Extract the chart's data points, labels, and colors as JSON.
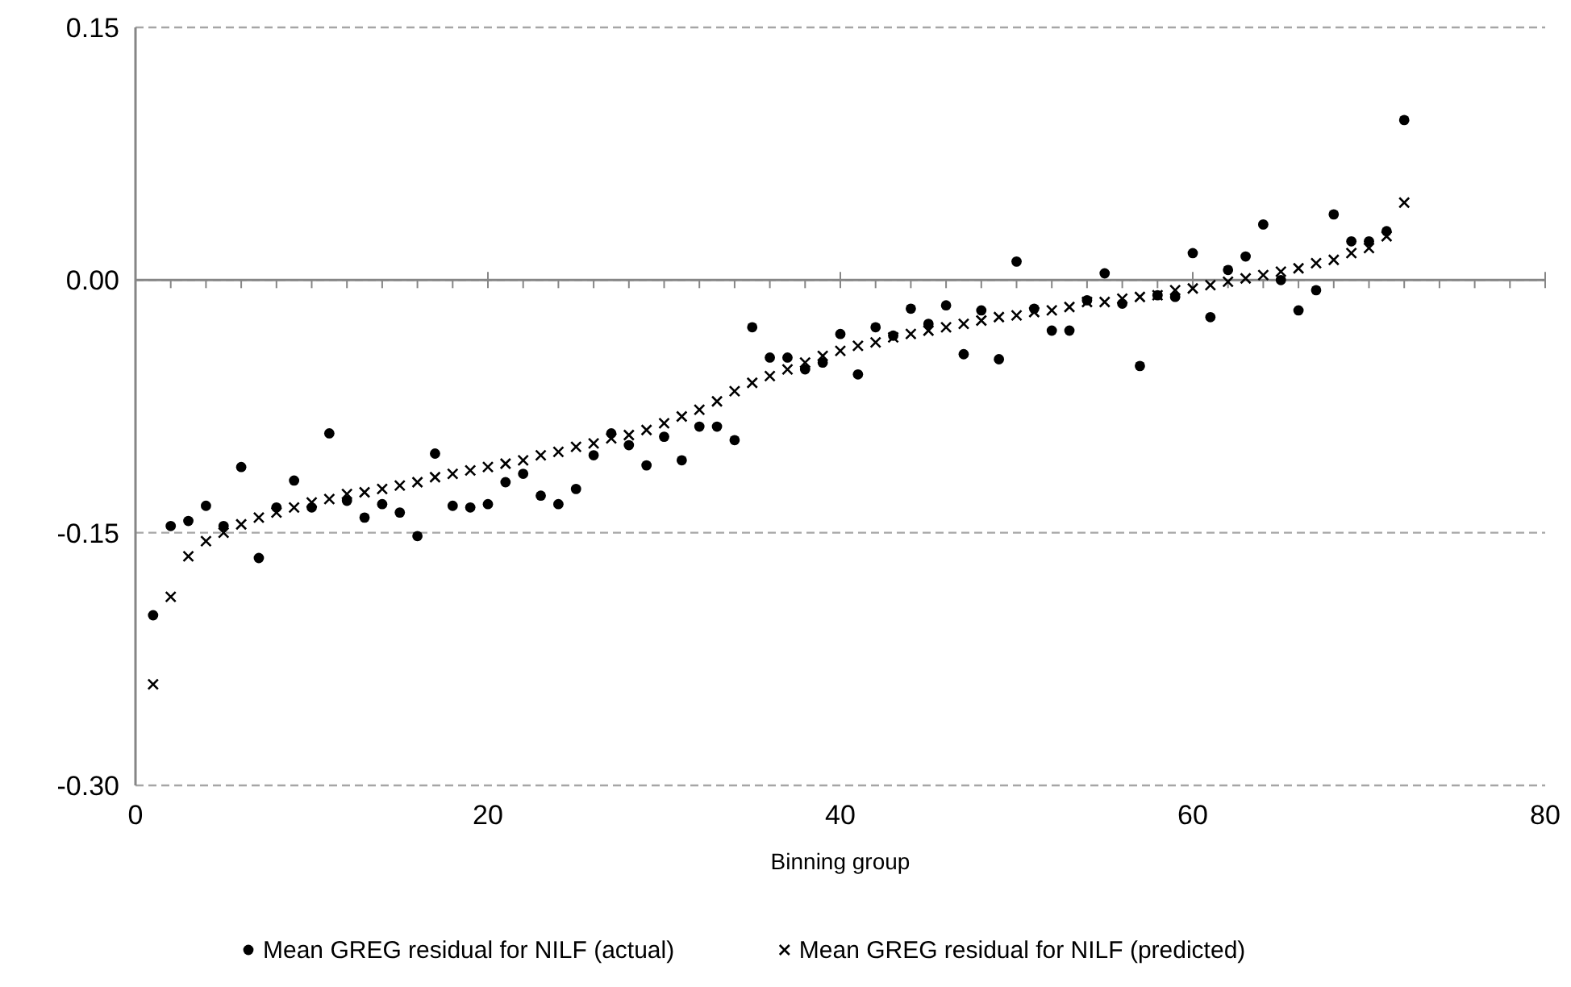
{
  "chart_data": {
    "type": "scatter",
    "xlabel": "Binning group",
    "xlim": [
      0,
      80
    ],
    "ylim": [
      -0.3,
      0.15
    ],
    "xticks": [
      0,
      {
        "value": 2,
        "label": null
      },
      {
        "value": 4,
        "label": null
      },
      {
        "value": 6,
        "label": null
      },
      {
        "value": 8,
        "label": null
      },
      {
        "value": 10,
        "label": null
      },
      {
        "value": 12,
        "label": null
      },
      {
        "value": 14,
        "label": null
      },
      {
        "value": 16,
        "label": null
      },
      {
        "value": 18,
        "label": null
      },
      20,
      {
        "value": 22,
        "label": null
      },
      {
        "value": 24,
        "label": null
      },
      {
        "value": 26,
        "label": null
      },
      {
        "value": 28,
        "label": null
      },
      {
        "value": 30,
        "label": null
      },
      {
        "value": 32,
        "label": null
      },
      {
        "value": 34,
        "label": null
      },
      {
        "value": 36,
        "label": null
      },
      {
        "value": 38,
        "label": null
      },
      40,
      {
        "value": 42,
        "label": null
      },
      {
        "value": 44,
        "label": null
      },
      {
        "value": 46,
        "label": null
      },
      {
        "value": 48,
        "label": null
      },
      {
        "value": 50,
        "label": null
      },
      {
        "value": 52,
        "label": null
      },
      {
        "value": 54,
        "label": null
      },
      {
        "value": 56,
        "label": null
      },
      {
        "value": 58,
        "label": null
      },
      60,
      {
        "value": 62,
        "label": null
      },
      {
        "value": 64,
        "label": null
      },
      {
        "value": 66,
        "label": null
      },
      {
        "value": 68,
        "label": null
      },
      {
        "value": 70,
        "label": null
      },
      {
        "value": 72,
        "label": null
      },
      {
        "value": 74,
        "label": null
      },
      {
        "value": 76,
        "label": null
      },
      {
        "value": 78,
        "label": null
      },
      80
    ],
    "yticks": [
      {
        "value": -0.3,
        "label": "-0.30"
      },
      {
        "value": -0.15,
        "label": "-0.15"
      },
      {
        "value": 0,
        "label": "0.00"
      },
      {
        "value": 0.15,
        "label": "0.15"
      }
    ],
    "grid": "y",
    "legend": "bottom",
    "x": [
      1,
      2,
      3,
      4,
      5,
      6,
      7,
      8,
      9,
      10,
      11,
      12,
      13,
      14,
      15,
      16,
      17,
      18,
      19,
      20,
      21,
      22,
      23,
      24,
      25,
      26,
      27,
      28,
      29,
      30,
      31,
      32,
      33,
      34,
      35,
      36,
      37,
      38,
      39,
      40,
      41,
      42,
      43,
      44,
      45,
      46,
      47,
      48,
      49,
      50,
      51,
      52,
      53,
      54,
      55,
      56,
      57,
      58,
      59,
      60,
      61,
      62,
      63,
      64,
      65,
      66,
      67,
      68,
      69,
      70,
      71,
      72
    ],
    "series": [
      {
        "name": "Mean GREG residual for NILF (actual)",
        "color": "#000000",
        "marker": "circle",
        "values": [
          -0.199,
          -0.146,
          -0.143,
          -0.134,
          -0.146,
          -0.111,
          -0.165,
          -0.135,
          -0.119,
          -0.135,
          -0.091,
          -0.131,
          -0.141,
          -0.133,
          -0.138,
          -0.152,
          -0.103,
          -0.134,
          -0.135,
          -0.133,
          -0.12,
          -0.115,
          -0.128,
          -0.133,
          -0.124,
          -0.104,
          -0.091,
          -0.098,
          -0.11,
          -0.093,
          -0.107,
          -0.087,
          -0.087,
          -0.095,
          -0.028,
          -0.046,
          -0.046,
          -0.053,
          -0.049,
          -0.032,
          -0.056,
          -0.028,
          -0.033,
          -0.017,
          -0.026,
          -0.015,
          -0.044,
          -0.018,
          -0.047,
          0.011,
          -0.017,
          -0.03,
          -0.03,
          -0.012,
          0.004,
          -0.014,
          -0.051,
          -0.009,
          -0.01,
          0.016,
          -0.022,
          0.006,
          0.014,
          0.033,
          0.0,
          -0.018,
          -0.006,
          0.039,
          0.023,
          0.023,
          0.029,
          0.095
        ]
      },
      {
        "name": "Mean GREG residual for NILF (predicted)",
        "color": "#000000",
        "marker": "cross",
        "values": [
          -0.24,
          -0.188,
          -0.164,
          -0.155,
          -0.15,
          -0.145,
          -0.141,
          -0.138,
          -0.135,
          -0.132,
          -0.13,
          -0.127,
          -0.126,
          -0.124,
          -0.122,
          -0.12,
          -0.117,
          -0.115,
          -0.113,
          -0.111,
          -0.109,
          -0.107,
          -0.104,
          -0.102,
          -0.099,
          -0.097,
          -0.094,
          -0.092,
          -0.089,
          -0.085,
          -0.081,
          -0.077,
          -0.072,
          -0.066,
          -0.061,
          -0.057,
          -0.053,
          -0.049,
          -0.045,
          -0.042,
          -0.039,
          -0.037,
          -0.034,
          -0.032,
          -0.03,
          -0.028,
          -0.026,
          -0.024,
          -0.022,
          -0.021,
          -0.019,
          -0.018,
          -0.016,
          -0.013,
          -0.013,
          -0.011,
          -0.01,
          -0.009,
          -0.006,
          -0.005,
          -0.003,
          -0.001,
          0.001,
          0.003,
          0.005,
          0.007,
          0.01,
          0.012,
          0.016,
          0.019,
          0.026,
          0.046
        ]
      }
    ]
  }
}
